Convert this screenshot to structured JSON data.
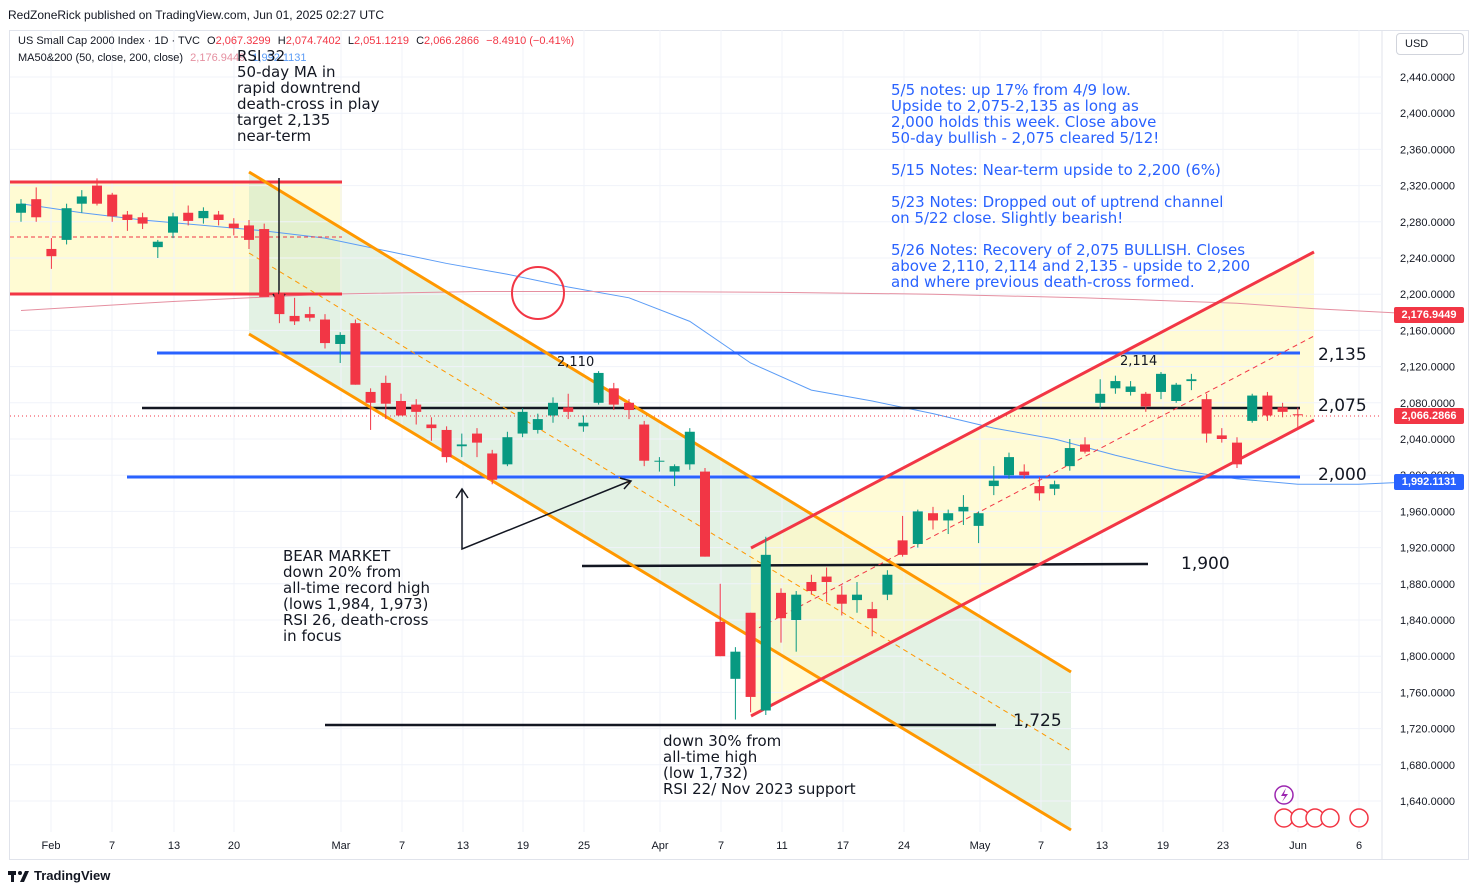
{
  "header": {
    "publisher": "RedZoneRick published on TradingView.com, Jun 01, 2025 02:27 UTC",
    "symbol": "US Small Cap 2000 Index · 1D · TVC",
    "o_label": "O",
    "o_value": "2,067.3299",
    "h_label": "H",
    "h_value": "2,074.7402",
    "l_label": "L",
    "l_value": "2,051.1219",
    "c_label": "C",
    "c_value": "2,066.2866",
    "change": "−8.4910 (−0.41%)",
    "ma_label": "MA50&200 (50, close, 200, close)",
    "ma200_value": "2,176.9449",
    "ma50_value": "1,992.1131"
  },
  "currency_button": "USD",
  "footer": {
    "brand": "TradingView"
  },
  "notes": [
    "5/5 notes: up 17% from 4/9 low.\nUpside to 2,075-2,135 as long as\n2,000 holds this week. Close above\n50-day bullish - 2,075 cleared 5/12!",
    "5/15 Notes: Near-term upside to 2,200 (6%)",
    "5/23 Notes: Dropped out of uptrend channel\non 5/22 close. Slightly bearish!",
    "5/26 Notes: Recovery of 2,075 BULLISH. Closes\nabove 2,110, 2,114 and 2,135 - upside to 2,200\nand where previous death-cross formed."
  ],
  "annotations": {
    "top_left": "RSI 32\n50-day MA in\nrapid downtrend\ndeath-cross in play\ntarget 2,135\nnear-term",
    "bear_market": "BEAR MARKET\ndown 20% from\nall-time record high\n(lows 1,984, 1,973)\nRSI 26, death-cross\nin focus",
    "down30": "down 30% from\nall-time high\n(low 1,732)\nRSI 22/ Nov 2023 support",
    "peak_2110": "2,110",
    "peak_2114": "2,114"
  },
  "levels": {
    "l2135": "2,135",
    "l2075": "2,075",
    "l2000": "2,000",
    "l1900": "1,900",
    "l1725": "1,725"
  },
  "price_tags": {
    "ma200": "2,176.9449",
    "last": "2,066.2866",
    "ma50": "1,992.1131"
  },
  "colors": {
    "up": "#089981",
    "down": "#f23645",
    "ma50": "#5b9cf6",
    "ma200": "#e58fa0",
    "channel_down": "#ff9800",
    "channel_up": "#f23645",
    "level_blue": "#2962ff",
    "note_blue": "#2962ff"
  },
  "chart_data": {
    "type": "candlestick",
    "title": "US Small Cap 2000 Index · 1D · TVC",
    "y_ticks": [
      1640,
      1680,
      1720,
      1760,
      1800,
      1840,
      1880,
      1920,
      1960,
      2000,
      2040,
      2080,
      2120,
      2160,
      2200,
      2240,
      2280,
      2320,
      2360,
      2400,
      2440
    ],
    "y_tick_labels": [
      "1,640.0000",
      "1,680.0000",
      "1,720.0000",
      "1,760.0000",
      "1,800.0000",
      "1,840.0000",
      "1,880.0000",
      "1,920.0000",
      "1,960.0000",
      "2,000.0000",
      "2,040.0000",
      "2,080.0000",
      "2,120.0000",
      "2,160.0000",
      "2,200.0000",
      "2,240.0000",
      "2,280.0000",
      "2,320.0000",
      "2,360.0000",
      "2,400.0000",
      "2,440.0000"
    ],
    "ylim": [
      1620,
      2460
    ],
    "x_tick_labels": [
      "Feb",
      "7",
      "13",
      "20",
      "Mar",
      "7",
      "13",
      "19",
      "25",
      "Apr",
      "7",
      "11",
      "17",
      "24",
      "May",
      "7",
      "13",
      "19",
      "23",
      "Jun",
      "6"
    ],
    "candles": [
      {
        "o": 2290,
        "h": 2305,
        "l": 2280,
        "c": 2300
      },
      {
        "o": 2305,
        "h": 2318,
        "l": 2280,
        "c": 2285
      },
      {
        "o": 2250,
        "h": 2262,
        "l": 2228,
        "c": 2242
      },
      {
        "o": 2260,
        "h": 2300,
        "l": 2255,
        "c": 2295
      },
      {
        "o": 2300,
        "h": 2315,
        "l": 2290,
        "c": 2308
      },
      {
        "o": 2320,
        "h": 2328,
        "l": 2298,
        "c": 2300
      },
      {
        "o": 2310,
        "h": 2312,
        "l": 2280,
        "c": 2286
      },
      {
        "o": 2288,
        "h": 2292,
        "l": 2270,
        "c": 2282
      },
      {
        "o": 2285,
        "h": 2290,
        "l": 2272,
        "c": 2278
      },
      {
        "o": 2252,
        "h": 2260,
        "l": 2240,
        "c": 2258
      },
      {
        "o": 2268,
        "h": 2290,
        "l": 2262,
        "c": 2286
      },
      {
        "o": 2290,
        "h": 2298,
        "l": 2276,
        "c": 2281
      },
      {
        "o": 2284,
        "h": 2296,
        "l": 2278,
        "c": 2292
      },
      {
        "o": 2288,
        "h": 2292,
        "l": 2276,
        "c": 2282
      },
      {
        "o": 2278,
        "h": 2284,
        "l": 2265,
        "c": 2273
      },
      {
        "o": 2276,
        "h": 2282,
        "l": 2250,
        "c": 2260
      },
      {
        "o": 2272,
        "h": 2278,
        "l": 2198,
        "c": 2197
      },
      {
        "o": 2200,
        "h": 2204,
        "l": 2168,
        "c": 2178
      },
      {
        "o": 2176,
        "h": 2196,
        "l": 2166,
        "c": 2170
      },
      {
        "o": 2178,
        "h": 2186,
        "l": 2170,
        "c": 2174
      },
      {
        "o": 2172,
        "h": 2178,
        "l": 2140,
        "c": 2146
      },
      {
        "o": 2145,
        "h": 2158,
        "l": 2124,
        "c": 2155
      },
      {
        "o": 2168,
        "h": 2172,
        "l": 2100,
        "c": 2100
      },
      {
        "o": 2092,
        "h": 2096,
        "l": 2050,
        "c": 2080
      },
      {
        "o": 2102,
        "h": 2110,
        "l": 2062,
        "c": 2079
      },
      {
        "o": 2082,
        "h": 2090,
        "l": 2066,
        "c": 2066
      },
      {
        "o": 2078,
        "h": 2084,
        "l": 2056,
        "c": 2070
      },
      {
        "o": 2056,
        "h": 2064,
        "l": 2038,
        "c": 2052
      },
      {
        "o": 2050,
        "h": 2054,
        "l": 2014,
        "c": 2020
      },
      {
        "o": 2032,
        "h": 2046,
        "l": 2020,
        "c": 2034
      },
      {
        "o": 2046,
        "h": 2052,
        "l": 2020,
        "c": 2036
      },
      {
        "o": 2024,
        "h": 2028,
        "l": 1990,
        "c": 1995
      },
      {
        "o": 2012,
        "h": 2048,
        "l": 2010,
        "c": 2042
      },
      {
        "o": 2046,
        "h": 2074,
        "l": 2042,
        "c": 2070
      },
      {
        "o": 2050,
        "h": 2068,
        "l": 2046,
        "c": 2062
      },
      {
        "o": 2066,
        "h": 2086,
        "l": 2058,
        "c": 2080
      },
      {
        "o": 2075,
        "h": 2090,
        "l": 2062,
        "c": 2070
      },
      {
        "o": 2054,
        "h": 2066,
        "l": 2048,
        "c": 2058
      },
      {
        "o": 2080,
        "h": 2115,
        "l": 2078,
        "c": 2113
      },
      {
        "o": 2096,
        "h": 2102,
        "l": 2072,
        "c": 2078
      },
      {
        "o": 2080,
        "h": 2084,
        "l": 2062,
        "c": 2072
      },
      {
        "o": 2056,
        "h": 2060,
        "l": 2010,
        "c": 2016
      },
      {
        "o": 2016,
        "h": 2020,
        "l": 2004,
        "c": 2016
      },
      {
        "o": 2004,
        "h": 2012,
        "l": 1988,
        "c": 2010
      },
      {
        "o": 2012,
        "h": 2052,
        "l": 2006,
        "c": 2048
      },
      {
        "o": 2004,
        "h": 2008,
        "l": 1910,
        "c": 1910
      },
      {
        "o": 1838,
        "h": 1880,
        "l": 1800,
        "c": 1800
      },
      {
        "o": 1775,
        "h": 1810,
        "l": 1730,
        "c": 1805
      },
      {
        "o": 1848,
        "h": 1848,
        "l": 1738,
        "c": 1755
      },
      {
        "o": 1740,
        "h": 1932,
        "l": 1735,
        "c": 1912
      },
      {
        "o": 1870,
        "h": 1875,
        "l": 1815,
        "c": 1842
      },
      {
        "o": 1840,
        "h": 1872,
        "l": 1805,
        "c": 1868
      },
      {
        "o": 1882,
        "h": 1890,
        "l": 1868,
        "c": 1872
      },
      {
        "o": 1888,
        "h": 1898,
        "l": 1860,
        "c": 1882
      },
      {
        "o": 1868,
        "h": 1878,
        "l": 1845,
        "c": 1858
      },
      {
        "o": 1862,
        "h": 1882,
        "l": 1848,
        "c": 1868
      },
      {
        "o": 1852,
        "h": 1860,
        "l": 1822,
        "c": 1842
      },
      {
        "o": 1868,
        "h": 1895,
        "l": 1862,
        "c": 1890
      },
      {
        "o": 1928,
        "h": 1955,
        "l": 1910,
        "c": 1912
      },
      {
        "o": 1924,
        "h": 1962,
        "l": 1920,
        "c": 1960
      },
      {
        "o": 1958,
        "h": 1965,
        "l": 1940,
        "c": 1950
      },
      {
        "o": 1950,
        "h": 1962,
        "l": 1935,
        "c": 1958
      },
      {
        "o": 1960,
        "h": 1978,
        "l": 1945,
        "c": 1965
      },
      {
        "o": 1944,
        "h": 1960,
        "l": 1925,
        "c": 1958
      },
      {
        "o": 1988,
        "h": 2010,
        "l": 1978,
        "c": 1994
      },
      {
        "o": 2000,
        "h": 2025,
        "l": 1996,
        "c": 2020
      },
      {
        "o": 2004,
        "h": 2012,
        "l": 1996,
        "c": 2000
      },
      {
        "o": 1988,
        "h": 1998,
        "l": 1972,
        "c": 1980
      },
      {
        "o": 1985,
        "h": 1994,
        "l": 1978,
        "c": 1990
      },
      {
        "o": 2010,
        "h": 2040,
        "l": 2005,
        "c": 2030
      },
      {
        "o": 2034,
        "h": 2042,
        "l": 2024,
        "c": 2026
      },
      {
        "o": 2080,
        "h": 2106,
        "l": 2074,
        "c": 2090
      },
      {
        "o": 2096,
        "h": 2110,
        "l": 2090,
        "c": 2104
      },
      {
        "o": 2092,
        "h": 2104,
        "l": 2088,
        "c": 2098
      },
      {
        "o": 2090,
        "h": 2092,
        "l": 2070,
        "c": 2076
      },
      {
        "o": 2092,
        "h": 2114,
        "l": 2084,
        "c": 2112
      },
      {
        "o": 2082,
        "h": 2102,
        "l": 2080,
        "c": 2100
      },
      {
        "o": 2104,
        "h": 2112,
        "l": 2094,
        "c": 2106
      },
      {
        "o": 2084,
        "h": 2090,
        "l": 2036,
        "c": 2046
      },
      {
        "o": 2044,
        "h": 2052,
        "l": 2036,
        "c": 2040
      },
      {
        "o": 2036,
        "h": 2042,
        "l": 2008,
        "c": 2012
      },
      {
        "o": 2060,
        "h": 2090,
        "l": 2058,
        "c": 2088
      },
      {
        "o": 2088,
        "h": 2092,
        "l": 2060,
        "c": 2066
      },
      {
        "o": 2075,
        "h": 2080,
        "l": 2064,
        "c": 2070
      },
      {
        "o": 2067.33,
        "h": 2074.74,
        "l": 2051.12,
        "c": 2066.29
      }
    ],
    "ma50": [
      [
        0,
        2300
      ],
      [
        4,
        2290
      ],
      [
        8,
        2282
      ],
      [
        12,
        2276
      ],
      [
        16,
        2270
      ],
      [
        20,
        2262
      ],
      [
        24,
        2248
      ],
      [
        28,
        2234
      ],
      [
        32,
        2222
      ],
      [
        36,
        2208
      ],
      [
        40,
        2196
      ],
      [
        44,
        2170
      ],
      [
        48,
        2124
      ],
      [
        52,
        2094
      ],
      [
        56,
        2082
      ],
      [
        60,
        2068
      ],
      [
        64,
        2052
      ],
      [
        68,
        2040
      ],
      [
        72,
        2022
      ],
      [
        76,
        2006
      ],
      [
        80,
        1996
      ],
      [
        84,
        1990
      ],
      [
        88,
        1990
      ],
      [
        92,
        1993
      ]
    ],
    "ma200": [
      [
        0,
        2182
      ],
      [
        10,
        2192
      ],
      [
        20,
        2200
      ],
      [
        30,
        2203
      ],
      [
        40,
        2203
      ],
      [
        50,
        2202
      ],
      [
        60,
        2200
      ],
      [
        70,
        2196
      ],
      [
        80,
        2190
      ],
      [
        85,
        2184
      ],
      [
        92,
        2178
      ]
    ]
  }
}
